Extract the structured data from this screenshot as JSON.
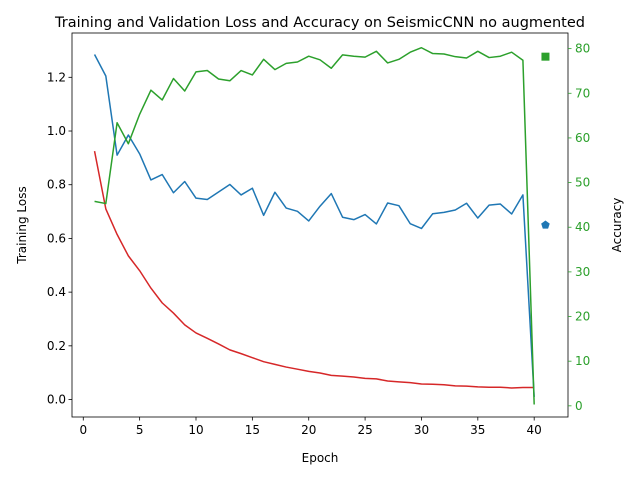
{
  "chart_data": {
    "type": "line",
    "title": "Training and Validation Loss and Accuracy on SeismicCNN no augmented",
    "xlabel": "Epoch",
    "ylabel_left": "Training Loss",
    "ylabel_right": "Accuracy",
    "xlim": [
      -1,
      43
    ],
    "ylim_left": [
      -0.065,
      1.365
    ],
    "ylim_right": [
      -2.5,
      83.5
    ],
    "x_ticks": [
      0,
      5,
      10,
      15,
      20,
      25,
      30,
      35,
      40
    ],
    "y_ticks_left": [
      0.0,
      0.2,
      0.4,
      0.6,
      0.8,
      1.0,
      1.2
    ],
    "y_ticks_right": [
      0,
      10,
      20,
      30,
      40,
      50,
      60,
      70,
      80
    ],
    "colors": {
      "training_loss": "#d62728",
      "validation_loss": "#1f77b4",
      "validation_accuracy": "#2ca02c",
      "right_axis": "#2ca02c"
    },
    "x": [
      1,
      2,
      3,
      4,
      5,
      6,
      7,
      8,
      9,
      10,
      11,
      12,
      13,
      14,
      15,
      16,
      17,
      18,
      19,
      20,
      21,
      22,
      23,
      24,
      25,
      26,
      27,
      28,
      29,
      30,
      31,
      32,
      33,
      34,
      35,
      36,
      37,
      38,
      39,
      40
    ],
    "series": [
      {
        "axis": "left",
        "color": "#d62728",
        "values": [
          0.925,
          0.71,
          0.615,
          0.535,
          0.48,
          0.415,
          0.36,
          0.322,
          0.278,
          0.248,
          0.228,
          0.207,
          0.185,
          0.171,
          0.156,
          0.141,
          0.131,
          0.121,
          0.113,
          0.105,
          0.099,
          0.09,
          0.087,
          0.084,
          0.079,
          0.077,
          0.069,
          0.066,
          0.063,
          0.058,
          0.057,
          0.055,
          0.051,
          0.05,
          0.047,
          0.046,
          0.046,
          0.043,
          0.045,
          0.045
        ]
      },
      {
        "axis": "left",
        "color": "#1f77b4",
        "values": [
          1.285,
          1.205,
          0.91,
          0.985,
          0.915,
          0.818,
          0.838,
          0.77,
          0.812,
          0.75,
          0.745,
          0.773,
          0.801,
          0.762,
          0.787,
          0.686,
          0.772,
          0.713,
          0.701,
          0.665,
          0.72,
          0.767,
          0.679,
          0.67,
          0.689,
          0.654,
          0.732,
          0.722,
          0.655,
          0.637,
          0.692,
          0.697,
          0.706,
          0.731,
          0.676,
          0.724,
          0.728,
          0.691,
          0.762,
          0.01
        ]
      },
      {
        "axis": "right",
        "color": "#2ca02c",
        "values": [
          45.8,
          45.3,
          63.4,
          58.7,
          65.3,
          70.7,
          68.5,
          73.3,
          70.5,
          74.8,
          75.1,
          73.2,
          72.8,
          75.1,
          74.1,
          77.6,
          75.3,
          76.7,
          77,
          78.3,
          77.5,
          75.6,
          78.6,
          78.3,
          78.1,
          79.4,
          76.8,
          77.6,
          79.2,
          80.2,
          78.9,
          78.8,
          78.2,
          77.9,
          79.4,
          78,
          78.3,
          79.2,
          77.4,
          0.3
        ]
      }
    ],
    "extra_points": [
      {
        "axis": "left",
        "x": 41,
        "y": 0.65,
        "marker": "pentagon",
        "color": "#1f77b4"
      },
      {
        "axis": "right",
        "x": 41,
        "y": 78.2,
        "marker": "square",
        "color": "#2ca02c"
      }
    ],
    "grid": false,
    "legend": "none"
  }
}
